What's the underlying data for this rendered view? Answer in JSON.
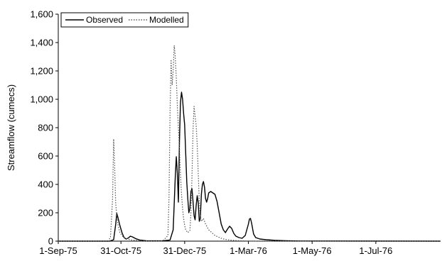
{
  "chart_data": {
    "type": "line",
    "title": "",
    "xlabel": "",
    "ylabel": "Streamflow (cumecs)",
    "ylim": [
      0,
      1600
    ],
    "xlim": [
      "1975-09-01",
      "1976-09-01"
    ],
    "y_ticks": [
      {
        "value": 0,
        "label": "0"
      },
      {
        "value": 200,
        "label": "200"
      },
      {
        "value": 400,
        "label": "400"
      },
      {
        "value": 600,
        "label": "600"
      },
      {
        "value": 800,
        "label": "800"
      },
      {
        "value": 1000,
        "label": "1,000"
      },
      {
        "value": 1200,
        "label": "1,200"
      },
      {
        "value": 1400,
        "label": "1,400"
      },
      {
        "value": 1600,
        "label": "1,600"
      }
    ],
    "x_ticks": [
      {
        "value": "1975-09-01",
        "label": "1-Sep-75"
      },
      {
        "value": "1975-10-31",
        "label": "31-Oct-75"
      },
      {
        "value": "1975-12-31",
        "label": "31-Dec-75"
      },
      {
        "value": "1976-03-01",
        "label": "1-Mar-76"
      },
      {
        "value": "1976-05-01",
        "label": "1-May-76"
      },
      {
        "value": "1976-07-01",
        "label": "1-Jul-76"
      }
    ],
    "grid": false,
    "legend": {
      "placement": "top-left",
      "boxed": true
    },
    "series": [
      {
        "name": "Observed",
        "line_style": "solid",
        "color": "#000000",
        "points": [
          [
            "1975-09-01",
            0
          ],
          [
            "1975-10-20",
            0
          ],
          [
            "1975-10-24",
            10
          ],
          [
            "1975-10-26",
            120
          ],
          [
            "1975-10-27",
            195
          ],
          [
            "1975-10-28",
            170
          ],
          [
            "1975-10-30",
            110
          ],
          [
            "1975-11-01",
            60
          ],
          [
            "1975-11-03",
            25
          ],
          [
            "1975-11-05",
            15
          ],
          [
            "1975-11-07",
            22
          ],
          [
            "1975-11-09",
            35
          ],
          [
            "1975-11-11",
            30
          ],
          [
            "1975-11-14",
            18
          ],
          [
            "1975-11-18",
            8
          ],
          [
            "1975-11-24",
            3
          ],
          [
            "1975-12-10",
            2
          ],
          [
            "1975-12-17",
            8
          ],
          [
            "1975-12-20",
            80
          ],
          [
            "1975-12-22",
            450
          ],
          [
            "1975-12-23",
            595
          ],
          [
            "1975-12-24",
            480
          ],
          [
            "1975-12-25",
            275
          ],
          [
            "1975-12-26",
            700
          ],
          [
            "1975-12-27",
            980
          ],
          [
            "1975-12-28",
            1050
          ],
          [
            "1975-12-29",
            1000
          ],
          [
            "1975-12-30",
            900
          ],
          [
            "1975-12-31",
            820
          ],
          [
            "1976-01-01",
            620
          ],
          [
            "1976-01-02",
            420
          ],
          [
            "1976-01-03",
            300
          ],
          [
            "1976-01-04",
            200
          ],
          [
            "1976-01-05",
            230
          ],
          [
            "1976-01-06",
            350
          ],
          [
            "1976-01-07",
            370
          ],
          [
            "1976-01-08",
            280
          ],
          [
            "1976-01-09",
            180
          ],
          [
            "1976-01-10",
            150
          ],
          [
            "1976-01-11",
            250
          ],
          [
            "1976-01-12",
            320
          ],
          [
            "1976-01-13",
            270
          ],
          [
            "1976-01-14",
            140
          ],
          [
            "1976-01-15",
            160
          ],
          [
            "1976-01-16",
            330
          ],
          [
            "1976-01-17",
            400
          ],
          [
            "1976-01-18",
            420
          ],
          [
            "1976-01-19",
            380
          ],
          [
            "1976-01-20",
            300
          ],
          [
            "1976-01-21",
            275
          ],
          [
            "1976-01-22",
            300
          ],
          [
            "1976-01-23",
            340
          ],
          [
            "1976-01-25",
            350
          ],
          [
            "1976-01-27",
            340
          ],
          [
            "1976-01-29",
            330
          ],
          [
            "1976-01-31",
            280
          ],
          [
            "1976-02-02",
            200
          ],
          [
            "1976-02-04",
            120
          ],
          [
            "1976-02-06",
            80
          ],
          [
            "1976-02-08",
            60
          ],
          [
            "1976-02-10",
            85
          ],
          [
            "1976-02-12",
            105
          ],
          [
            "1976-02-14",
            90
          ],
          [
            "1976-02-16",
            55
          ],
          [
            "1976-02-18",
            35
          ],
          [
            "1976-02-21",
            25
          ],
          [
            "1976-02-24",
            20
          ],
          [
            "1976-02-27",
            40
          ],
          [
            "1976-03-01",
            120
          ],
          [
            "1976-03-02",
            155
          ],
          [
            "1976-03-03",
            160
          ],
          [
            "1976-03-04",
            130
          ],
          [
            "1976-03-06",
            50
          ],
          [
            "1976-03-08",
            25
          ],
          [
            "1976-03-12",
            15
          ],
          [
            "1976-03-18",
            10
          ],
          [
            "1976-03-26",
            6
          ],
          [
            "1976-04-06",
            3
          ],
          [
            "1976-04-20",
            1
          ],
          [
            "1976-09-01",
            0
          ]
        ]
      },
      {
        "name": "Modelled",
        "line_style": "dotted",
        "color": "#555555",
        "points": [
          [
            "1975-09-01",
            0
          ],
          [
            "1975-10-19",
            0
          ],
          [
            "1975-10-21",
            30
          ],
          [
            "1975-10-23",
            300
          ],
          [
            "1975-10-24",
            720
          ],
          [
            "1975-10-25",
            520
          ],
          [
            "1975-10-26",
            260
          ],
          [
            "1975-10-28",
            120
          ],
          [
            "1975-10-30",
            60
          ],
          [
            "1975-11-02",
            30
          ],
          [
            "1975-11-06",
            15
          ],
          [
            "1975-11-10",
            8
          ],
          [
            "1975-11-20",
            2
          ],
          [
            "1975-12-10",
            1
          ],
          [
            "1975-12-15",
            40
          ],
          [
            "1975-12-16",
            300
          ],
          [
            "1975-12-17",
            900
          ],
          [
            "1975-12-18",
            1280
          ],
          [
            "1975-12-19",
            1100
          ],
          [
            "1975-12-20",
            1200
          ],
          [
            "1975-12-21",
            1380
          ],
          [
            "1975-12-22",
            1300
          ],
          [
            "1975-12-23",
            1150
          ],
          [
            "1975-12-24",
            950
          ],
          [
            "1975-12-25",
            800
          ],
          [
            "1975-12-26",
            650
          ],
          [
            "1975-12-27",
            470
          ],
          [
            "1975-12-28",
            330
          ],
          [
            "1975-12-29",
            230
          ],
          [
            "1975-12-30",
            160
          ],
          [
            "1975-12-31",
            110
          ],
          [
            "1976-01-01",
            80
          ],
          [
            "1976-01-03",
            60
          ],
          [
            "1976-01-05",
            75
          ],
          [
            "1976-01-06",
            200
          ],
          [
            "1976-01-07",
            450
          ],
          [
            "1976-01-08",
            780
          ],
          [
            "1976-01-09",
            950
          ],
          [
            "1976-01-10",
            880
          ],
          [
            "1976-01-11",
            820
          ],
          [
            "1976-01-12",
            680
          ],
          [
            "1976-01-13",
            480
          ],
          [
            "1976-01-14",
            280
          ],
          [
            "1976-01-15",
            180
          ],
          [
            "1976-01-16",
            140
          ],
          [
            "1976-01-18",
            160
          ],
          [
            "1976-01-20",
            120
          ],
          [
            "1976-01-23",
            80
          ],
          [
            "1976-01-26",
            60
          ],
          [
            "1976-01-29",
            40
          ],
          [
            "1976-02-01",
            30
          ],
          [
            "1976-02-04",
            20
          ],
          [
            "1976-02-08",
            12
          ],
          [
            "1976-02-14",
            6
          ],
          [
            "1976-02-24",
            2
          ],
          [
            "1976-03-10",
            0
          ],
          [
            "1976-09-01",
            0
          ]
        ]
      }
    ]
  }
}
